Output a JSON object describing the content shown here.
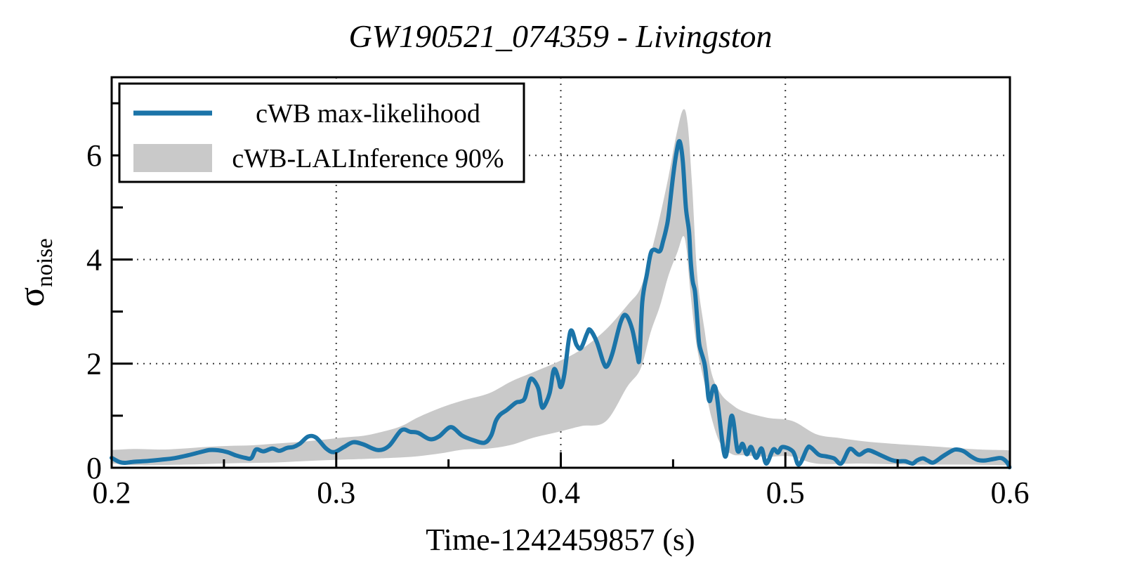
{
  "title": "GW190521_074359 - Livingston",
  "colors": {
    "line": "#1b74a8",
    "band": "#c9c9c9",
    "grid": "#3a3a3a",
    "axis": "#000000",
    "background": "#ffffff",
    "legend_background": "#ffffff"
  },
  "axes": {
    "xlabel": "Time-1242459857 (s)",
    "ylabel_symbol": "σ",
    "ylabel_subscript": "noise",
    "xlim": [
      0.2,
      0.6
    ],
    "ylim": [
      0,
      7.5
    ],
    "xticks": [
      0.2,
      0.3,
      0.4,
      0.5,
      0.6
    ],
    "xtick_labels": [
      "0.2",
      "0.3",
      "0.4",
      "0.5",
      "0.6"
    ],
    "xminorticks": [
      0.25,
      0.35,
      0.45,
      0.55
    ],
    "yticks": [
      0,
      2,
      4,
      6
    ],
    "ytick_labels": [
      "0",
      "2",
      "4",
      "6"
    ],
    "yminorticks": [
      1,
      3,
      5,
      7
    ],
    "grid_x": [
      0.3,
      0.4,
      0.5
    ],
    "grid_y": [
      2,
      4,
      6
    ],
    "grid_style": "dotted"
  },
  "legend": {
    "position": "upper left",
    "items": [
      {
        "label": "cWB max-likelihood",
        "type": "line"
      },
      {
        "label": "cWB-LALInference 90%",
        "type": "patch"
      }
    ]
  },
  "chart_data": {
    "type": "line",
    "title": "GW190521_074359 - Livingston",
    "xlabel": "Time-1242459857 (s)",
    "ylabel": "sigma_noise",
    "xlim": [
      0.2,
      0.6
    ],
    "ylim": [
      0,
      7.5
    ],
    "grid": true,
    "legend_position": "upper left",
    "series": [
      {
        "name": "cWB max-likelihood",
        "type": "line",
        "points": [
          [
            0.2,
            0.19
          ],
          [
            0.2035,
            0.11
          ],
          [
            0.206,
            0.095
          ],
          [
            0.21,
            0.115
          ],
          [
            0.216,
            0.13
          ],
          [
            0.222,
            0.155
          ],
          [
            0.228,
            0.185
          ],
          [
            0.234,
            0.24
          ],
          [
            0.2395,
            0.3
          ],
          [
            0.2435,
            0.34
          ],
          [
            0.2475,
            0.335
          ],
          [
            0.2515,
            0.3
          ],
          [
            0.2555,
            0.235
          ],
          [
            0.2595,
            0.19
          ],
          [
            0.2622,
            0.185
          ],
          [
            0.2643,
            0.35
          ],
          [
            0.2676,
            0.315
          ],
          [
            0.2715,
            0.37
          ],
          [
            0.2747,
            0.325
          ],
          [
            0.278,
            0.38
          ],
          [
            0.281,
            0.4
          ],
          [
            0.284,
            0.47
          ],
          [
            0.2875,
            0.6
          ],
          [
            0.291,
            0.58
          ],
          [
            0.2955,
            0.37
          ],
          [
            0.299,
            0.3
          ],
          [
            0.3035,
            0.4
          ],
          [
            0.3075,
            0.49
          ],
          [
            0.312,
            0.45
          ],
          [
            0.3185,
            0.34
          ],
          [
            0.3235,
            0.42
          ],
          [
            0.329,
            0.72
          ],
          [
            0.333,
            0.69
          ],
          [
            0.3365,
            0.67
          ],
          [
            0.3416,
            0.55
          ],
          [
            0.3457,
            0.6
          ],
          [
            0.351,
            0.78
          ],
          [
            0.356,
            0.62
          ],
          [
            0.361,
            0.53
          ],
          [
            0.366,
            0.48
          ],
          [
            0.369,
            0.62
          ],
          [
            0.371,
            0.89
          ],
          [
            0.373,
            1.02
          ],
          [
            0.376,
            1.11
          ],
          [
            0.38,
            1.25
          ],
          [
            0.382,
            1.27
          ],
          [
            0.384,
            1.34
          ],
          [
            0.386,
            1.66
          ],
          [
            0.3875,
            1.7
          ],
          [
            0.39,
            1.52
          ],
          [
            0.3913,
            1.21
          ],
          [
            0.3924,
            1.17
          ],
          [
            0.395,
            1.43
          ],
          [
            0.3966,
            1.84
          ],
          [
            0.3976,
            1.88
          ],
          [
            0.399,
            1.7
          ],
          [
            0.4,
            1.55
          ],
          [
            0.4016,
            1.8
          ],
          [
            0.4043,
            2.62
          ],
          [
            0.407,
            2.36
          ],
          [
            0.409,
            2.3
          ],
          [
            0.4117,
            2.58
          ],
          [
            0.413,
            2.65
          ],
          [
            0.416,
            2.42
          ],
          [
            0.419,
            2.02
          ],
          [
            0.4206,
            1.95
          ],
          [
            0.423,
            2.2
          ],
          [
            0.4266,
            2.79
          ],
          [
            0.429,
            2.93
          ],
          [
            0.4318,
            2.66
          ],
          [
            0.434,
            2.19
          ],
          [
            0.435,
            2.1
          ],
          [
            0.4363,
            3.19
          ],
          [
            0.4384,
            3.73
          ],
          [
            0.44,
            4.11
          ],
          [
            0.4415,
            4.19
          ],
          [
            0.4441,
            4.16
          ],
          [
            0.4456,
            4.36
          ],
          [
            0.447,
            4.6
          ],
          [
            0.448,
            4.85
          ],
          [
            0.45,
            5.6
          ],
          [
            0.4515,
            6.05
          ],
          [
            0.4529,
            6.27
          ],
          [
            0.4543,
            5.9
          ],
          [
            0.4557,
            5.0
          ],
          [
            0.4571,
            4.54
          ],
          [
            0.4578,
            4.0
          ],
          [
            0.4587,
            3.59
          ],
          [
            0.4597,
            3.4
          ],
          [
            0.4604,
            3.05
          ],
          [
            0.4611,
            2.65
          ],
          [
            0.4618,
            2.34
          ],
          [
            0.464,
            2.0
          ],
          [
            0.465,
            1.66
          ],
          [
            0.4662,
            1.28
          ],
          [
            0.4689,
            1.53
          ],
          [
            0.4731,
            0.22
          ],
          [
            0.4761,
            1.0
          ],
          [
            0.4787,
            0.33
          ],
          [
            0.4809,
            0.46
          ],
          [
            0.4828,
            0.26
          ],
          [
            0.4847,
            0.4
          ],
          [
            0.487,
            0.19
          ],
          [
            0.4894,
            0.37
          ],
          [
            0.4915,
            0.08
          ],
          [
            0.4946,
            0.35
          ],
          [
            0.4967,
            0.29
          ],
          [
            0.4988,
            0.4
          ],
          [
            0.5034,
            0.31
          ],
          [
            0.506,
            0.06
          ],
          [
            0.5097,
            0.37
          ],
          [
            0.5113,
            0.39
          ],
          [
            0.5149,
            0.25
          ],
          [
            0.518,
            0.22
          ],
          [
            0.5217,
            0.18
          ],
          [
            0.5248,
            0.08
          ],
          [
            0.528,
            0.33
          ],
          [
            0.5295,
            0.36
          ],
          [
            0.5316,
            0.28
          ],
          [
            0.5331,
            0.25
          ],
          [
            0.5357,
            0.32
          ],
          [
            0.5378,
            0.33
          ],
          [
            0.542,
            0.25
          ],
          [
            0.5472,
            0.15
          ],
          [
            0.5503,
            0.125
          ],
          [
            0.5534,
            0.125
          ],
          [
            0.5566,
            0.08
          ],
          [
            0.5586,
            0.14
          ],
          [
            0.5612,
            0.18
          ],
          [
            0.5633,
            0.14
          ],
          [
            0.5659,
            0.1
          ],
          [
            0.5701,
            0.22
          ],
          [
            0.5743,
            0.33
          ],
          [
            0.5764,
            0.35
          ],
          [
            0.5795,
            0.315
          ],
          [
            0.5826,
            0.22
          ],
          [
            0.5857,
            0.15
          ],
          [
            0.5889,
            0.14
          ],
          [
            0.593,
            0.17
          ],
          [
            0.5962,
            0.185
          ],
          [
            0.5988,
            0.1
          ],
          [
            0.5998,
            0.01
          ]
        ]
      },
      {
        "name": "cWB-LALInference 90%",
        "type": "band",
        "upper": [
          [
            0.2,
            0.34
          ],
          [
            0.21,
            0.36
          ],
          [
            0.222,
            0.35
          ],
          [
            0.232,
            0.37
          ],
          [
            0.242,
            0.4
          ],
          [
            0.252,
            0.42
          ],
          [
            0.262,
            0.43
          ],
          [
            0.272,
            0.46
          ],
          [
            0.282,
            0.49
          ],
          [
            0.292,
            0.53
          ],
          [
            0.303,
            0.58
          ],
          [
            0.313,
            0.62
          ],
          [
            0.324,
            0.73
          ],
          [
            0.33,
            0.82
          ],
          [
            0.3365,
            0.97
          ],
          [
            0.347,
            1.16
          ],
          [
            0.357,
            1.3
          ],
          [
            0.368,
            1.43
          ],
          [
            0.378,
            1.66
          ],
          [
            0.388,
            1.84
          ],
          [
            0.399,
            2.04
          ],
          [
            0.409,
            2.27
          ],
          [
            0.42,
            2.65
          ],
          [
            0.43,
            3.14
          ],
          [
            0.4355,
            3.45
          ],
          [
            0.44,
            4.1
          ],
          [
            0.444,
            4.8
          ],
          [
            0.448,
            5.6
          ],
          [
            0.4515,
            6.4
          ],
          [
            0.4545,
            6.88
          ],
          [
            0.4565,
            6.6
          ],
          [
            0.4585,
            5.4
          ],
          [
            0.4608,
            3.68
          ],
          [
            0.464,
            2.65
          ],
          [
            0.467,
            1.84
          ],
          [
            0.4711,
            1.43
          ],
          [
            0.4763,
            1.21
          ],
          [
            0.4815,
            1.08
          ],
          [
            0.492,
            0.96
          ],
          [
            0.503,
            0.9
          ],
          [
            0.514,
            0.64
          ],
          [
            0.5243,
            0.57
          ],
          [
            0.5347,
            0.51
          ],
          [
            0.545,
            0.47
          ],
          [
            0.555,
            0.44
          ],
          [
            0.566,
            0.41
          ],
          [
            0.576,
            0.38
          ],
          [
            0.587,
            0.35
          ],
          [
            0.597,
            0.34
          ],
          [
            0.6,
            0.33
          ]
        ],
        "lower": [
          [
            0.2,
            0.085
          ],
          [
            0.212,
            0.05
          ],
          [
            0.232,
            0.06
          ],
          [
            0.252,
            0.085
          ],
          [
            0.272,
            0.1
          ],
          [
            0.292,
            0.14
          ],
          [
            0.313,
            0.17
          ],
          [
            0.325,
            0.19
          ],
          [
            0.336,
            0.22
          ],
          [
            0.347,
            0.28
          ],
          [
            0.357,
            0.35
          ],
          [
            0.368,
            0.37
          ],
          [
            0.378,
            0.44
          ],
          [
            0.388,
            0.58
          ],
          [
            0.399,
            0.69
          ],
          [
            0.409,
            0.8
          ],
          [
            0.42,
            0.89
          ],
          [
            0.4295,
            1.55
          ],
          [
            0.4355,
            1.9
          ],
          [
            0.44,
            2.6
          ],
          [
            0.4441,
            3.1
          ],
          [
            0.448,
            3.7
          ],
          [
            0.452,
            4.15
          ],
          [
            0.4545,
            4.45
          ],
          [
            0.456,
            4.2
          ],
          [
            0.4576,
            3.42
          ],
          [
            0.4604,
            2.38
          ],
          [
            0.464,
            1.61
          ],
          [
            0.467,
            0.98
          ],
          [
            0.4711,
            0.46
          ],
          [
            0.4763,
            0.26
          ],
          [
            0.4815,
            0.24
          ],
          [
            0.492,
            0.21
          ],
          [
            0.5024,
            0.22
          ],
          [
            0.514,
            0.08
          ],
          [
            0.5347,
            0.08
          ],
          [
            0.5566,
            0.06
          ],
          [
            0.576,
            0.06
          ],
          [
            0.597,
            0.05
          ],
          [
            0.6,
            0.04
          ]
        ]
      }
    ]
  }
}
